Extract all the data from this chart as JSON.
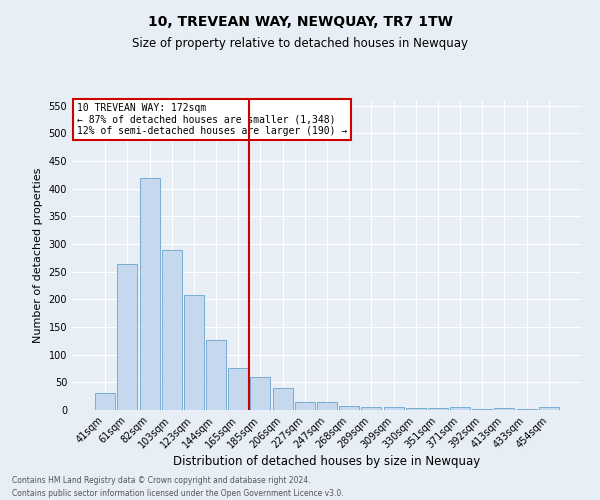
{
  "title": "10, TREVEAN WAY, NEWQUAY, TR7 1TW",
  "subtitle": "Size of property relative to detached houses in Newquay",
  "xlabel": "Distribution of detached houses by size in Newquay",
  "ylabel": "Number of detached properties",
  "categories": [
    "41sqm",
    "61sqm",
    "82sqm",
    "103sqm",
    "123sqm",
    "144sqm",
    "165sqm",
    "185sqm",
    "206sqm",
    "227sqm",
    "247sqm",
    "268sqm",
    "289sqm",
    "309sqm",
    "330sqm",
    "351sqm",
    "371sqm",
    "392sqm",
    "413sqm",
    "433sqm",
    "454sqm"
  ],
  "values": [
    30,
    263,
    420,
    289,
    207,
    126,
    75,
    59,
    40,
    15,
    15,
    8,
    5,
    5,
    3,
    3,
    5,
    2,
    3,
    2,
    5
  ],
  "bar_color": "#c5d8ee",
  "bar_edge_color": "#7aadd4",
  "vline_x": 6.5,
  "vline_color": "#cc0000",
  "annotation_title": "10 TREVEAN WAY: 172sqm",
  "annotation_line1": "← 87% of detached houses are smaller (1,348)",
  "annotation_line2": "12% of semi-detached houses are larger (190) →",
  "annotation_box_color": "#ffffff",
  "annotation_border_color": "#cc0000",
  "ylim": [
    0,
    560
  ],
  "yticks": [
    0,
    50,
    100,
    150,
    200,
    250,
    300,
    350,
    400,
    450,
    500,
    550
  ],
  "footer1": "Contains HM Land Registry data © Crown copyright and database right 2024.",
  "footer2": "Contains public sector information licensed under the Open Government Licence v3.0.",
  "bg_color": "#e8eef5",
  "plot_bg_color": "#e8eef5",
  "title_fontsize": 10,
  "subtitle_fontsize": 8.5
}
